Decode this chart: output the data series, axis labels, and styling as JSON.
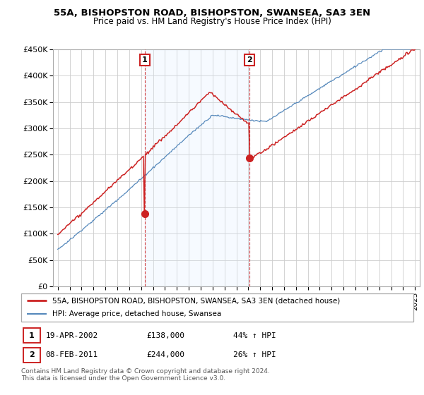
{
  "title": "55A, BISHOPSTON ROAD, BISHOPSTON, SWANSEA, SA3 3EN",
  "subtitle": "Price paid vs. HM Land Registry's House Price Index (HPI)",
  "sale1_date": "19-APR-2002",
  "sale1_price": 138000,
  "sale1_label": "44% ↑ HPI",
  "sale2_date": "08-FEB-2011",
  "sale2_price": 244000,
  "sale2_label": "26% ↑ HPI",
  "legend_line1": "55A, BISHOPSTON ROAD, BISHOPSTON, SWANSEA, SA3 3EN (detached house)",
  "legend_line2": "HPI: Average price, detached house, Swansea",
  "footnote": "Contains HM Land Registry data © Crown copyright and database right 2024.\nThis data is licensed under the Open Government Licence v3.0.",
  "hpi_color": "#5588bb",
  "price_color": "#cc2222",
  "shaded_color": "#ddeeff",
  "plot_bg": "#ffffff",
  "grid_color": "#cccccc",
  "ylim": [
    0,
    450000
  ],
  "yticks": [
    0,
    50000,
    100000,
    150000,
    200000,
    250000,
    300000,
    350000,
    400000,
    450000
  ],
  "sale1_year": 2002.3,
  "sale2_year": 2011.1
}
